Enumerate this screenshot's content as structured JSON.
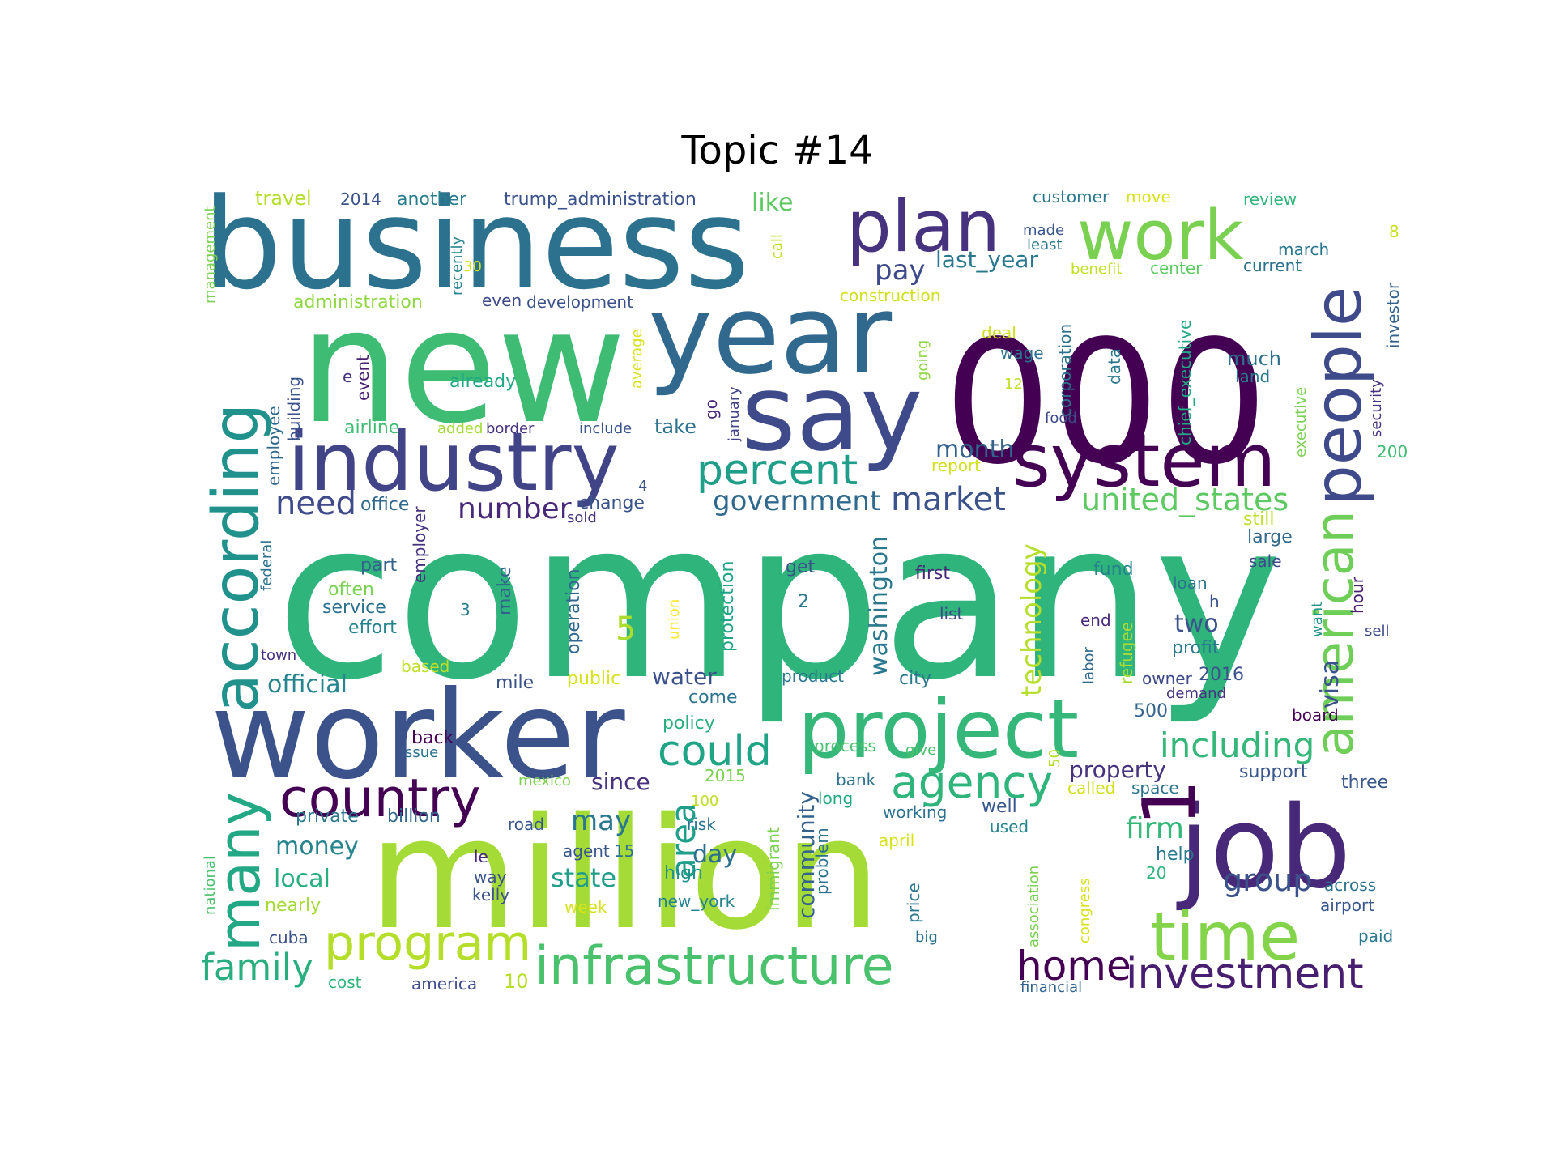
{
  "title": "Topic #14",
  "words": [
    {
      "text": "company",
      "color": "#2fb47c"
    },
    {
      "text": "million",
      "color": "#a5db36"
    },
    {
      "text": "new",
      "color": "#3fbc73"
    },
    {
      "text": "000",
      "color": "#440154"
    },
    {
      "text": "business",
      "color": "#2c728e"
    },
    {
      "text": "worker",
      "color": "#3b528b"
    },
    {
      "text": "year",
      "color": "#31688e"
    },
    {
      "text": "say",
      "color": "#3e4a89"
    },
    {
      "text": "job",
      "color": "#482878"
    },
    {
      "text": "industry",
      "color": "#414487"
    },
    {
      "text": "system",
      "color": "#440154"
    },
    {
      "text": "project",
      "color": "#35b779"
    },
    {
      "text": "according",
      "color": "#21918c"
    },
    {
      "text": "people",
      "color": "#3e4a89"
    },
    {
      "text": "plan",
      "color": "#46327e"
    },
    {
      "text": "work",
      "color": "#7ad151"
    },
    {
      "text": "time",
      "color": "#84d44b"
    },
    {
      "text": "american",
      "color": "#6ece58"
    },
    {
      "text": "infrastructure",
      "color": "#4ac16d"
    },
    {
      "text": "many",
      "color": "#22a884"
    },
    {
      "text": "country",
      "color": "#440154"
    },
    {
      "text": "program",
      "color": "#b5de2b"
    },
    {
      "text": "investment",
      "color": "#481f70"
    },
    {
      "text": "percent",
      "color": "#1f9e89"
    },
    {
      "text": "agency",
      "color": "#2fb47c"
    },
    {
      "text": "could",
      "color": "#20a486"
    },
    {
      "text": "home",
      "color": "#440154"
    },
    {
      "text": "1",
      "color": "#440154"
    },
    {
      "text": "family",
      "color": "#29af7f"
    },
    {
      "text": "area",
      "color": "#1f9e89"
    },
    {
      "text": "including",
      "color": "#35b779"
    },
    {
      "text": "united_states",
      "color": "#5ec962"
    },
    {
      "text": "market",
      "color": "#3b528b"
    },
    {
      "text": "need",
      "color": "#3e4a89"
    },
    {
      "text": "government",
      "color": "#30698e"
    },
    {
      "text": "number",
      "color": "#482878"
    },
    {
      "text": "technology",
      "color": "#b5de2b"
    },
    {
      "text": "washington",
      "color": "#2a788e"
    },
    {
      "text": "group",
      "color": "#3b528b"
    },
    {
      "text": "firm",
      "color": "#35b779"
    },
    {
      "text": "pay",
      "color": "#3e4a89"
    },
    {
      "text": "month",
      "color": "#33638d"
    },
    {
      "text": "last_year",
      "color": "#2a788e"
    },
    {
      "text": "official",
      "color": "#25848e"
    },
    {
      "text": "state",
      "color": "#1f9e89"
    },
    {
      "text": "may",
      "color": "#2a788e"
    },
    {
      "text": "day",
      "color": "#2d708e"
    },
    {
      "text": "like",
      "color": "#5ec962"
    },
    {
      "text": "community",
      "color": "#33638d"
    },
    {
      "text": "local",
      "color": "#29af7f"
    },
    {
      "text": "money",
      "color": "#25848e"
    },
    {
      "text": "property",
      "color": "#46337e"
    },
    {
      "text": "visa",
      "color": "#3b528b"
    },
    {
      "text": "two",
      "color": "#3b528b"
    },
    {
      "text": "water",
      "color": "#3b528b"
    },
    {
      "text": "since",
      "color": "#46327e"
    },
    {
      "text": "take",
      "color": "#2c728e"
    },
    {
      "text": "5",
      "color": "#addc30"
    },
    {
      "text": "travel",
      "color": "#b5de2b"
    },
    {
      "text": "2014",
      "color": "#3b528b"
    },
    {
      "text": "another",
      "color": "#287d8e"
    },
    {
      "text": "trump_administration",
      "color": "#3b528b"
    },
    {
      "text": "customer",
      "color": "#2a788e"
    },
    {
      "text": "move",
      "color": "#d8e219"
    },
    {
      "text": "review",
      "color": "#2fb47c"
    },
    {
      "text": "management",
      "color": "#7ad151"
    },
    {
      "text": "recently",
      "color": "#25848e"
    },
    {
      "text": "30",
      "color": "#d8e219"
    },
    {
      "text": "call",
      "color": "#bddf26"
    },
    {
      "text": "made",
      "color": "#39568c"
    },
    {
      "text": "least",
      "color": "#2a788e"
    },
    {
      "text": "march",
      "color": "#2a788e"
    },
    {
      "text": "benefit",
      "color": "#c2df23"
    },
    {
      "text": "center",
      "color": "#5ec962"
    },
    {
      "text": "current",
      "color": "#2c728e"
    },
    {
      "text": "8",
      "color": "#c8e020"
    },
    {
      "text": "investor",
      "color": "#33638d"
    },
    {
      "text": "administration",
      "color": "#90d743"
    },
    {
      "text": "even",
      "color": "#3e4a89"
    },
    {
      "text": "development",
      "color": "#3b528b"
    },
    {
      "text": "construction",
      "color": "#d0e11c"
    },
    {
      "text": "deal",
      "color": "#d0e11c"
    },
    {
      "text": "wage",
      "color": "#2c728e"
    },
    {
      "text": "corporation",
      "color": "#2c728e"
    },
    {
      "text": "data",
      "color": "#2a788e"
    },
    {
      "text": "chief_executive",
      "color": "#22a884"
    },
    {
      "text": "much",
      "color": "#2d708e"
    },
    {
      "text": "land",
      "color": "#2a788e"
    },
    {
      "text": "security",
      "color": "#46327e"
    },
    {
      "text": "building",
      "color": "#3b528b"
    },
    {
      "text": "event",
      "color": "#481f70"
    },
    {
      "text": "e",
      "color": "#46327e"
    },
    {
      "text": "already",
      "color": "#22a884"
    },
    {
      "text": "average",
      "color": "#d8e219"
    },
    {
      "text": "going",
      "color": "#90d743"
    },
    {
      "text": "12",
      "color": "#c2df23"
    },
    {
      "text": "food",
      "color": "#3e4a89"
    },
    {
      "text": "employee",
      "color": "#31688e"
    },
    {
      "text": "airline",
      "color": "#3fbc73"
    },
    {
      "text": "added",
      "color": "#a5db36"
    },
    {
      "text": "border",
      "color": "#46327e"
    },
    {
      "text": "include",
      "color": "#39568c"
    },
    {
      "text": "go",
      "color": "#482878"
    },
    {
      "text": "january",
      "color": "#414487"
    },
    {
      "text": "executive",
      "color": "#7ad151"
    },
    {
      "text": "200",
      "color": "#3fbc73"
    },
    {
      "text": "report",
      "color": "#d0e11c"
    },
    {
      "text": "4",
      "color": "#3b528b"
    },
    {
      "text": "office",
      "color": "#31688e"
    },
    {
      "text": "change",
      "color": "#39568c"
    },
    {
      "text": "sold",
      "color": "#46327e"
    },
    {
      "text": "still",
      "color": "#bddf26"
    },
    {
      "text": "large",
      "color": "#31688e"
    },
    {
      "text": "federal",
      "color": "#2c728e"
    },
    {
      "text": "employer",
      "color": "#46327e"
    },
    {
      "text": "make",
      "color": "#33638d"
    },
    {
      "text": "operation",
      "color": "#31688e"
    },
    {
      "text": "protection",
      "color": "#20a486"
    },
    {
      "text": "get",
      "color": "#3b528b"
    },
    {
      "text": "first",
      "color": "#482878"
    },
    {
      "text": "fund",
      "color": "#25848e"
    },
    {
      "text": "loan",
      "color": "#2c728e"
    },
    {
      "text": "sale",
      "color": "#3e4a89"
    },
    {
      "text": "hour",
      "color": "#481f70"
    },
    {
      "text": "part",
      "color": "#33638d"
    },
    {
      "text": "often",
      "color": "#7ad151"
    },
    {
      "text": "service",
      "color": "#2c728e"
    },
    {
      "text": "effort",
      "color": "#25848e"
    },
    {
      "text": "3",
      "color": "#287d8e"
    },
    {
      "text": "union",
      "color": "#fde725"
    },
    {
      "text": "2",
      "color": "#2a788e"
    },
    {
      "text": "list",
      "color": "#3e4a89"
    },
    {
      "text": "h",
      "color": "#3b528b"
    },
    {
      "text": "want",
      "color": "#21918c"
    },
    {
      "text": "sell",
      "color": "#3e4a89"
    },
    {
      "text": "end",
      "color": "#482878"
    },
    {
      "text": "refugee",
      "color": "#a5db36"
    },
    {
      "text": "profit",
      "color": "#2a788e"
    },
    {
      "text": "town",
      "color": "#46327e"
    },
    {
      "text": "based",
      "color": "#bddf26"
    },
    {
      "text": "public",
      "color": "#d8e219"
    },
    {
      "text": "mile",
      "color": "#3b528b"
    },
    {
      "text": "product",
      "color": "#2a788e"
    },
    {
      "text": "city",
      "color": "#2a788e"
    },
    {
      "text": "labor",
      "color": "#31688e"
    },
    {
      "text": "owner",
      "color": "#3e4a89"
    },
    {
      "text": "2016",
      "color": "#3b528b"
    },
    {
      "text": "demand",
      "color": "#46327e"
    },
    {
      "text": "come",
      "color": "#2c728e"
    },
    {
      "text": "policy",
      "color": "#29af7f"
    },
    {
      "text": "500",
      "color": "#33638d"
    },
    {
      "text": "board",
      "color": "#440154"
    },
    {
      "text": "back",
      "color": "#440154"
    },
    {
      "text": "issue",
      "color": "#2c728e"
    },
    {
      "text": "process",
      "color": "#4ac16d"
    },
    {
      "text": "give",
      "color": "#4ac16d"
    },
    {
      "text": "50",
      "color": "#b5de2b"
    },
    {
      "text": "mexico",
      "color": "#7ad151"
    },
    {
      "text": "2015",
      "color": "#7ad151"
    },
    {
      "text": "bank",
      "color": "#2c728e"
    },
    {
      "text": "support",
      "color": "#39568c"
    },
    {
      "text": "three",
      "color": "#39568c"
    },
    {
      "text": "long",
      "color": "#22a884"
    },
    {
      "text": "called",
      "color": "#d0e11c"
    },
    {
      "text": "space",
      "color": "#2c728e"
    },
    {
      "text": "private",
      "color": "#2a788e"
    },
    {
      "text": "billion",
      "color": "#31688e"
    },
    {
      "text": "road",
      "color": "#39568c"
    },
    {
      "text": "risk",
      "color": "#2c728e"
    },
    {
      "text": "100",
      "color": "#bddf26"
    },
    {
      "text": "immigrant",
      "color": "#7ad151"
    },
    {
      "text": "problem",
      "color": "#2c728e"
    },
    {
      "text": "working",
      "color": "#2c728e"
    },
    {
      "text": "well",
      "color": "#39568c"
    },
    {
      "text": "used",
      "color": "#25848e"
    },
    {
      "text": "national",
      "color": "#4ac16d"
    },
    {
      "text": "agent",
      "color": "#39568c"
    },
    {
      "text": "15",
      "color": "#2c728e"
    },
    {
      "text": "april",
      "color": "#d8e219"
    },
    {
      "text": "association",
      "color": "#7ad151"
    },
    {
      "text": "help",
      "color": "#2a788e"
    },
    {
      "text": "le",
      "color": "#482878"
    },
    {
      "text": "high",
      "color": "#21918c"
    },
    {
      "text": "way",
      "color": "#3b528b"
    },
    {
      "text": "price",
      "color": "#2a788e"
    },
    {
      "text": "congress",
      "color": "#d8e219"
    },
    {
      "text": "20",
      "color": "#2fb47c"
    },
    {
      "text": "across",
      "color": "#2c728e"
    },
    {
      "text": "kelly",
      "color": "#3b528b"
    },
    {
      "text": "week",
      "color": "#d8e219"
    },
    {
      "text": "new_york",
      "color": "#25848e"
    },
    {
      "text": "airport",
      "color": "#39568c"
    },
    {
      "text": "nearly",
      "color": "#a5db36"
    },
    {
      "text": "cuba",
      "color": "#3b528b"
    },
    {
      "text": "big",
      "color": "#2c728e"
    },
    {
      "text": "paid",
      "color": "#2a788e"
    },
    {
      "text": "10",
      "color": "#b5de2b"
    },
    {
      "text": "cost",
      "color": "#2fb47c"
    },
    {
      "text": "america",
      "color": "#3e4a89"
    },
    {
      "text": "financial",
      "color": "#33638d"
    }
  ]
}
